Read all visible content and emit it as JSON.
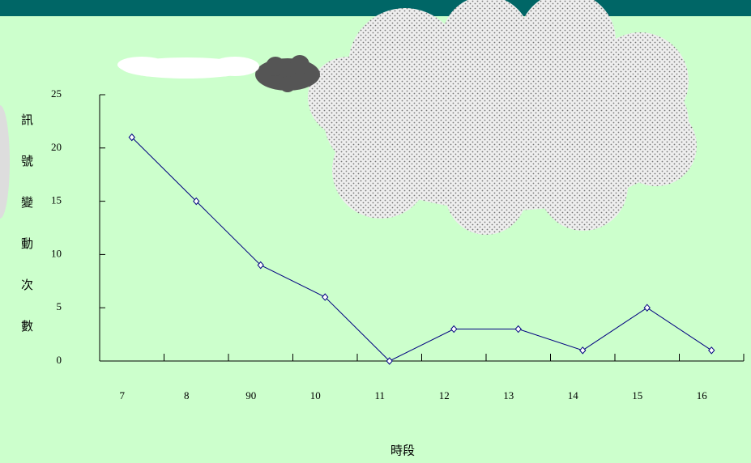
{
  "chart_data": {
    "type": "line",
    "categories": [
      "7",
      "8",
      "90",
      "10",
      "11",
      "12",
      "13",
      "14",
      "15",
      "16"
    ],
    "series": [
      {
        "color": "#000080",
        "values": [
          21,
          15,
          9,
          6,
          0,
          3,
          3,
          1,
          5,
          1
        ]
      }
    ],
    "ylim": [
      0,
      25
    ],
    "yticks": [
      0,
      5,
      10,
      15,
      20,
      25
    ],
    "y_label": "訊號變動次數",
    "x_label": "時段"
  }
}
